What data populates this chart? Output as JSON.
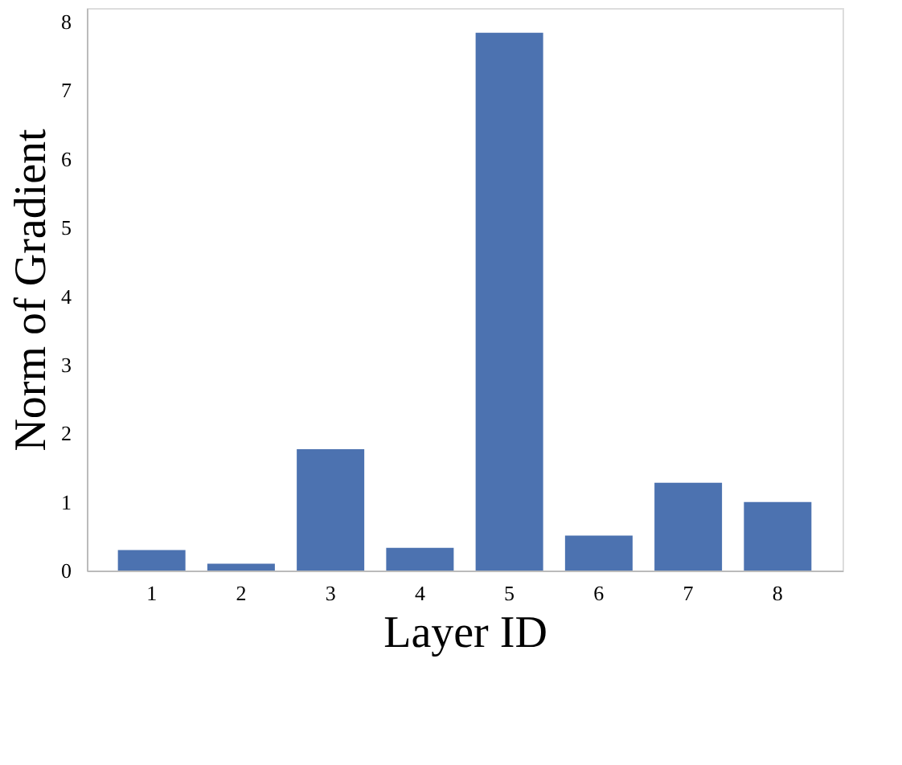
{
  "chart_data": {
    "type": "bar",
    "xlabel": "Layer ID",
    "ylabel": "Norm of Gradient",
    "categories": [
      "1",
      "2",
      "3",
      "4",
      "5",
      "6",
      "7",
      "8"
    ],
    "values": [
      0.3,
      0.1,
      1.77,
      0.33,
      7.84,
      0.51,
      1.28,
      1.0
    ],
    "color": "#4c72b0",
    "ylim": [
      0,
      8.2
    ],
    "yticks": [
      0,
      1,
      2,
      3,
      4,
      5,
      6,
      7,
      8
    ],
    "grid": false
  }
}
